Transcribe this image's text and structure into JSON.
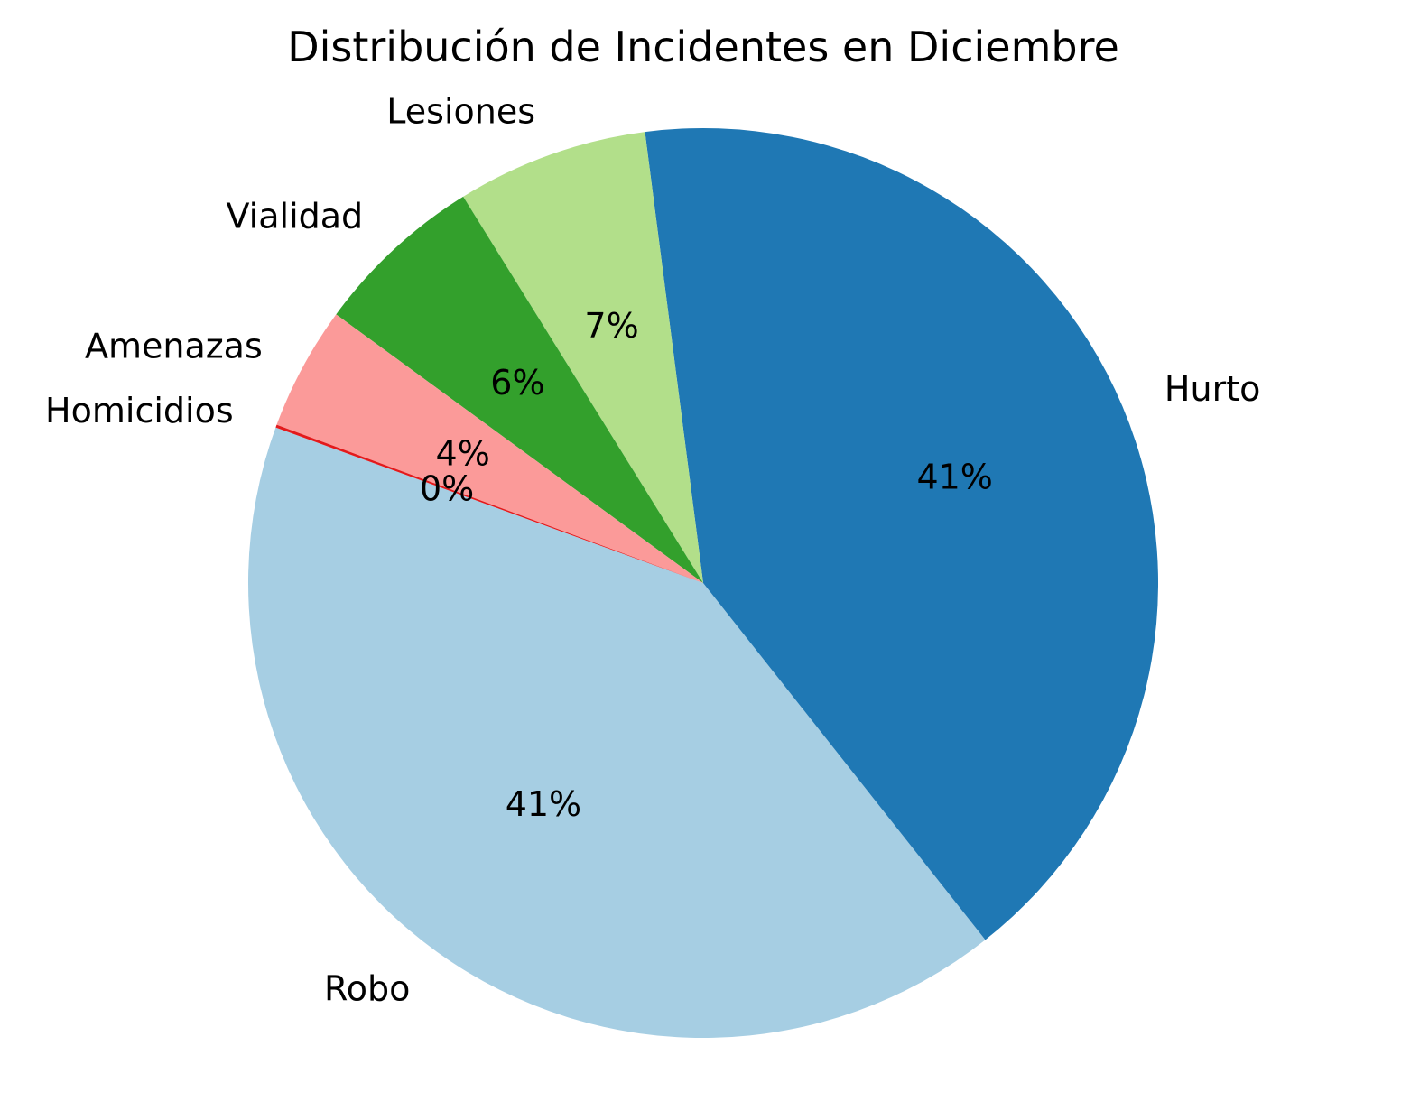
{
  "chart_data": {
    "type": "pie",
    "title": "Distribución de Incidentes en Diciembre",
    "categories": [
      "Robo",
      "Hurto",
      "Lesiones",
      "Vialidad",
      "Amenazas",
      "Homicidios"
    ],
    "values": [
      41.2,
      41.4,
      6.8,
      6.1,
      4.4,
      0.1
    ],
    "pct_labels": [
      "41%",
      "41%",
      "7%",
      "6%",
      "4%",
      "0%"
    ],
    "colors": [
      "#a6cee3",
      "#1f78b4",
      "#b2df8a",
      "#33a02c",
      "#fb9a99",
      "#e31a1c"
    ],
    "start_angle_deg": 160,
    "direction": "counterclockwise"
  }
}
